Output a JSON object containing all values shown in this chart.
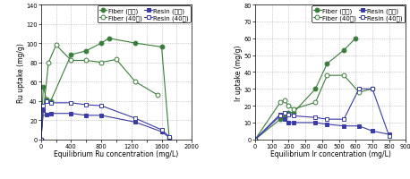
{
  "left": {
    "xlabel": "Equilibrium Ru concentration (mg/L)",
    "ylabel": "Ru uptake (mg/g)",
    "xlim": [
      0,
      2000
    ],
    "ylim": [
      0,
      140
    ],
    "xticks": [
      0,
      200,
      400,
      600,
      800,
      1000,
      1200,
      1400,
      1600,
      1800,
      2000
    ],
    "yticks": [
      0,
      20,
      40,
      60,
      80,
      100,
      120,
      140
    ],
    "series": [
      {
        "label": "Fiber (상온)",
        "x": [
          0,
          30,
          70,
          130,
          400,
          600,
          800,
          900,
          1250,
          1600,
          1700
        ],
        "y": [
          0,
          55,
          42,
          40,
          88,
          92,
          100,
          105,
          100,
          96,
          2
        ],
        "color": "#3a7d3a",
        "marker": "o",
        "markersize": 3.5,
        "linestyle": "-",
        "fillstyle": "full"
      },
      {
        "label": "Fiber (40도)",
        "x": [
          0,
          30,
          100,
          200,
          400,
          600,
          800,
          1000,
          1250,
          1550
        ],
        "y": [
          0,
          28,
          80,
          98,
          82,
          82,
          80,
          83,
          60,
          46
        ],
        "color": "#3a7d3a",
        "marker": "o",
        "markersize": 3.5,
        "linestyle": "-",
        "fillstyle": "none"
      },
      {
        "label": "Resin (상온)",
        "x": [
          0,
          30,
          70,
          130,
          400,
          600,
          800,
          1250,
          1600,
          1700
        ],
        "y": [
          0,
          30,
          26,
          27,
          27,
          25,
          25,
          18,
          8,
          2
        ],
        "color": "#3a3aaa",
        "marker": "s",
        "markersize": 3.5,
        "linestyle": "-",
        "fillstyle": "full"
      },
      {
        "label": "Resin (40도)",
        "x": [
          0,
          30,
          70,
          130,
          400,
          600,
          800,
          1250,
          1600,
          1700
        ],
        "y": [
          0,
          35,
          40,
          38,
          38,
          36,
          35,
          22,
          10,
          3
        ],
        "color": "#3a3aaa",
        "marker": "s",
        "markersize": 3.5,
        "linestyle": "-",
        "fillstyle": "none"
      }
    ]
  },
  "right": {
    "xlabel": "Equilibrium Ir concentration (mg/L)",
    "ylabel": "Ir uptake (mg/g)",
    "xlim": [
      0,
      900
    ],
    "ylim": [
      0,
      80
    ],
    "xticks": [
      0,
      100,
      200,
      300,
      400,
      500,
      600,
      700,
      800,
      900
    ],
    "yticks": [
      0,
      10,
      20,
      30,
      40,
      50,
      60,
      70,
      80
    ],
    "series": [
      {
        "label": "Fiber (상온)",
        "x": [
          0,
          150,
          175,
          200,
          230,
          360,
          430,
          530,
          600
        ],
        "y": [
          0,
          12,
          13,
          16,
          16,
          30,
          45,
          53,
          60
        ],
        "color": "#3a7d3a",
        "marker": "o",
        "markersize": 3.5,
        "linestyle": "-",
        "fillstyle": "full"
      },
      {
        "label": "Fiber (40도)",
        "x": [
          0,
          150,
          175,
          200,
          230,
          360,
          430,
          530,
          620,
          700
        ],
        "y": [
          0,
          22,
          23,
          20,
          18,
          22,
          38,
          38,
          28,
          30
        ],
        "color": "#3a7d3a",
        "marker": "o",
        "markersize": 3.5,
        "linestyle": "-",
        "fillstyle": "none"
      },
      {
        "label": "Resin (상온)",
        "x": [
          0,
          150,
          175,
          200,
          230,
          360,
          430,
          530,
          620,
          700,
          800
        ],
        "y": [
          0,
          15,
          12,
          10,
          10,
          10,
          9,
          8,
          8,
          5,
          3
        ],
        "color": "#3a3aaa",
        "marker": "s",
        "markersize": 3.5,
        "linestyle": "-",
        "fillstyle": "full"
      },
      {
        "label": "Resin (40도)",
        "x": [
          0,
          150,
          175,
          200,
          230,
          360,
          430,
          530,
          620,
          700,
          800
        ],
        "y": [
          0,
          14,
          16,
          15,
          14,
          13,
          12,
          12,
          30,
          30,
          2
        ],
        "color": "#3a3aaa",
        "marker": "s",
        "markersize": 3.5,
        "linestyle": "-",
        "fillstyle": "none"
      }
    ]
  },
  "legend_fontsize": 5.0,
  "axis_fontsize": 5.5,
  "tick_fontsize": 4.8
}
